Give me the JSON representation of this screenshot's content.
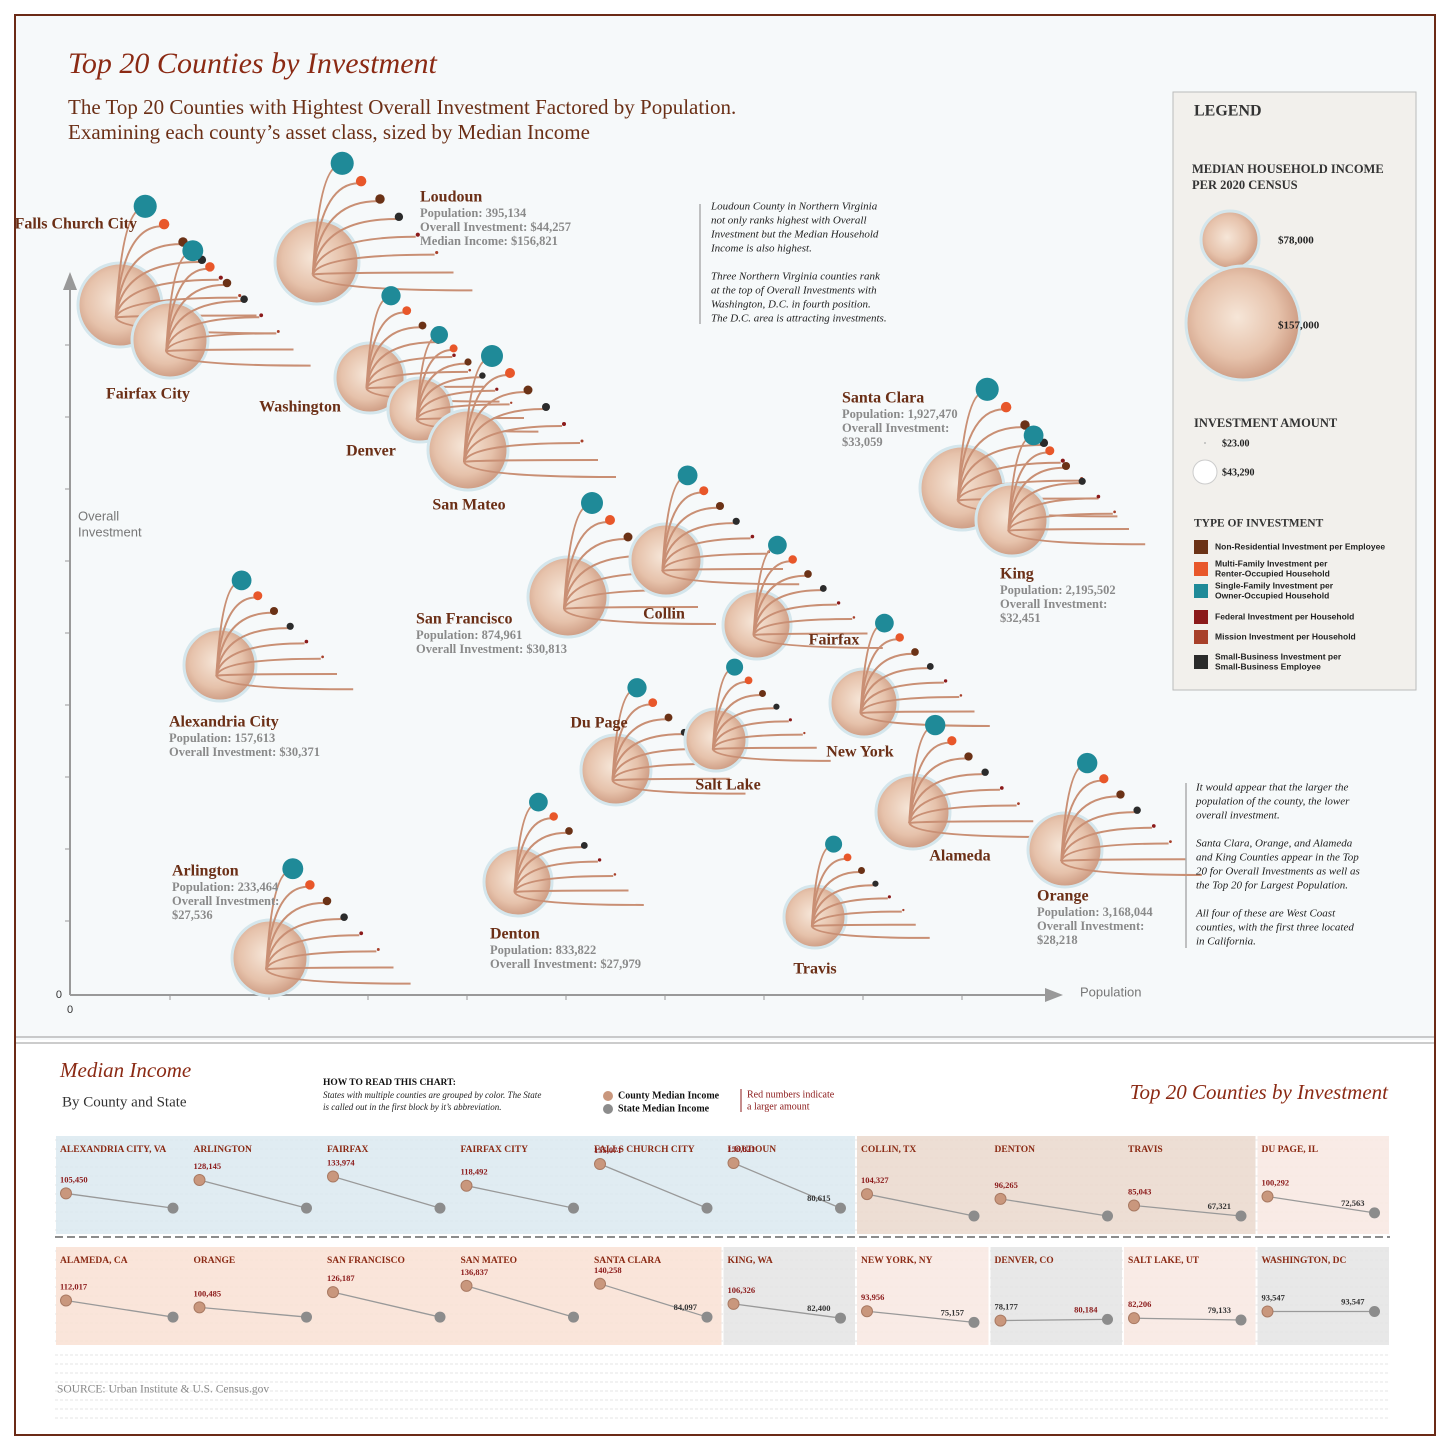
{
  "header": {
    "title": "Top 20 Counties by Investment",
    "subtitle": [
      "The Top 20 Counties with Hightest Overall Investment Factored by Population.",
      "Examining each county’s asset class, sized by Median Income"
    ]
  },
  "axes": {
    "x_label": "Population",
    "y_label": [
      "Overall",
      "Investment"
    ],
    "x_origin": "0",
    "y_origin": "0"
  },
  "counties": [
    {
      "name": "Falls Church City",
      "details": []
    },
    {
      "name": "Fairfax City",
      "details": []
    },
    {
      "name": "Loudoun",
      "details": [
        "Population: 395,134",
        "Overall Investment: $44,257",
        "Median Income:  $156,821"
      ]
    },
    {
      "name": "Washington",
      "details": []
    },
    {
      "name": "Denver",
      "details": []
    },
    {
      "name": "San Mateo",
      "details": []
    },
    {
      "name": "Santa Clara",
      "details": [
        "Population: 1,927,470",
        "Overall Investment:",
        "$33,059"
      ]
    },
    {
      "name": "King",
      "details": [
        "Population: 2,195,502",
        "Overall Investment:",
        "$32,451"
      ]
    },
    {
      "name": "San Francisco",
      "details": [
        "Population: 874,961",
        "Overall Investment: $30,813"
      ]
    },
    {
      "name": "Collin",
      "details": []
    },
    {
      "name": "Fairfax",
      "details": []
    },
    {
      "name": "Alexandria City",
      "details": [
        "Population: 157,613",
        "Overall Investment: $30,371"
      ]
    },
    {
      "name": "New York",
      "details": []
    },
    {
      "name": "Du Page",
      "details": []
    },
    {
      "name": "Salt Lake",
      "details": []
    },
    {
      "name": "Alameda",
      "details": []
    },
    {
      "name": "Orange",
      "details": [
        "Population: 3,168,044",
        "Overall Investment:",
        "$28,218"
      ]
    },
    {
      "name": "Arlington",
      "details": [
        "Population: 233,464",
        "Overall Investment:",
        "$27,536"
      ]
    },
    {
      "name": "Denton",
      "details": [
        "Population: 833,822",
        "Overall Investment: $27,979"
      ]
    },
    {
      "name": "Travis",
      "details": []
    }
  ],
  "notes": {
    "top": [
      [
        "Loudoun County in Northern Virginia",
        "not only ranks highest with Overall",
        "Investment but the Median Household",
        "Income is also highest."
      ],
      [
        "Three Northern Virginia counties rank",
        "at the top of Overall Investments with",
        "Washington, D.C. in fourth position.",
        "The D.C. area is attracting investments."
      ]
    ],
    "right": [
      [
        "It would appear that the larger the",
        "population of the county, the lower",
        "overall investment."
      ],
      [
        "Santa Clara, Orange,  and Alameda",
        "and King Counties appear in the Top",
        "20 for Overall Investments as well as",
        "the Top 20 for Largest Population."
      ],
      [
        "All four of these are West Coast",
        "counties, with the first three located",
        "in California."
      ]
    ]
  },
  "legend": {
    "title": "LEGEND",
    "income_title": [
      "MEDIAN HOUSEHOLD INCOME",
      "PER 2020 CENSUS"
    ],
    "income_sizes": [
      "$78,000",
      "$157,000"
    ],
    "investment_title": "INVESTMENT AMOUNT",
    "investment_sizes": [
      "$23.00",
      "$43,290"
    ],
    "type_title": "TYPE OF INVESTMENT",
    "types": [
      {
        "label": [
          "Non-Residential Investment per Employee"
        ],
        "color": "#6b3216"
      },
      {
        "label": [
          "Multi-Family Investment per",
          "Renter-Occupied Household"
        ],
        "color": "#e8572a"
      },
      {
        "label": [
          "Single-Family Investment per",
          "Owner-Occupied Household"
        ],
        "color": "#1f8a98"
      },
      {
        "label": [
          "Federal Investment per Household"
        ],
        "color": "#8b1a1a"
      },
      {
        "label": [
          "Mission Investment per Household"
        ],
        "color": "#a8402a"
      },
      {
        "label": [
          "Small-Business Investment per",
          "Small-Business Employee"
        ],
        "color": "#2b2b2b"
      }
    ]
  },
  "median": {
    "title": "Median Income",
    "subtitle": "By County and State",
    "how_title": "HOW TO READ THIS CHART:",
    "how_text": [
      "States with multiple counties are grouped by color. The State",
      "is called out in the first block by it’s abbreviation."
    ],
    "county_key": "County Median Income",
    "state_key": "State Median Income",
    "red_note": [
      "Red numbers indicate",
      "a larger amount"
    ],
    "side_title": "Top 20 Counties by Investment",
    "county_color": "#c9977d",
    "state_color": "#8c8c8c",
    "rows": [
      [
        {
          "color": "#dbe9f0",
          "state": 80615,
          "state_label": "80,615",
          "counties": [
            {
              "name": "ALEXANDRIA CITY, VA",
              "value": 105450,
              "label": "105,450"
            },
            {
              "name": "ARLINGTON",
              "value": 128145,
              "label": "128,145"
            },
            {
              "name": "FAIRFAX",
              "value": 133974,
              "label": "133,974"
            },
            {
              "name": "FAIRFAX CITY",
              "value": 118492,
              "label": "118,492"
            },
            {
              "name": "FALLS CHURCH CITY",
              "value": 155071,
              "label": "155,071"
            },
            {
              "name": "LOUDOUN",
              "value": 156821,
              "label": "156,821"
            }
          ]
        },
        {
          "color": "#ead8cc",
          "state": 67321,
          "state_label": "67,321",
          "counties": [
            {
              "name": "COLLIN, TX",
              "value": 104327,
              "label": "104,327"
            },
            {
              "name": "DENTON",
              "value": 96265,
              "label": "96,265"
            },
            {
              "name": "TRAVIS",
              "value": 85043,
              "label": "85,043"
            }
          ]
        },
        {
          "color": "#f8e8e2",
          "state": 72563,
          "state_label": "72,563",
          "counties": [
            {
              "name": "DU PAGE, IL",
              "value": 100292,
              "label": "100,292"
            }
          ]
        }
      ],
      [
        {
          "color": "#f9e0d4",
          "state": 84097,
          "state_label": "84,097",
          "counties": [
            {
              "name": "ALAMEDA, CA",
              "value": 112017,
              "label": "112,017"
            },
            {
              "name": "ORANGE",
              "value": 100485,
              "label": "100,485"
            },
            {
              "name": "SAN FRANCISCO",
              "value": 126187,
              "label": "126,187"
            },
            {
              "name": "SAN MATEO",
              "value": 136837,
              "label": "136,837"
            },
            {
              "name": "SANTA CLARA",
              "value": 140258,
              "label": "140,258"
            }
          ]
        },
        {
          "color": "#e4e4e4",
          "state": 82400,
          "state_label": "82,400",
          "counties": [
            {
              "name": "KING, WA",
              "value": 106326,
              "label": "106,326"
            }
          ]
        },
        {
          "color": "#f8e8e2",
          "state": 75157,
          "state_label": "75,157",
          "counties": [
            {
              "name": "NEW YORK, NY",
              "value": 93956,
              "label": "93,956"
            }
          ]
        },
        {
          "color": "#e4e4e4",
          "state": 80184,
          "state_label": "80,184",
          "counties": [
            {
              "name": "DENVER, CO",
              "value": 78177,
              "label": "78,177"
            }
          ]
        },
        {
          "color": "#f8e8e2",
          "state": 79133,
          "state_label": "79,133",
          "counties": [
            {
              "name": "SALT LAKE, UT",
              "value": 82206,
              "label": "82,206"
            }
          ]
        },
        {
          "color": "#e4e4e4",
          "state": 93547,
          "state_label": "93,547",
          "counties": [
            {
              "name": "WASHINGTON, DC",
              "value": 93547,
              "label": "93,547"
            }
          ]
        }
      ]
    ],
    "source": "SOURCE:  Urban Institute & U.S. Census.gov"
  }
}
